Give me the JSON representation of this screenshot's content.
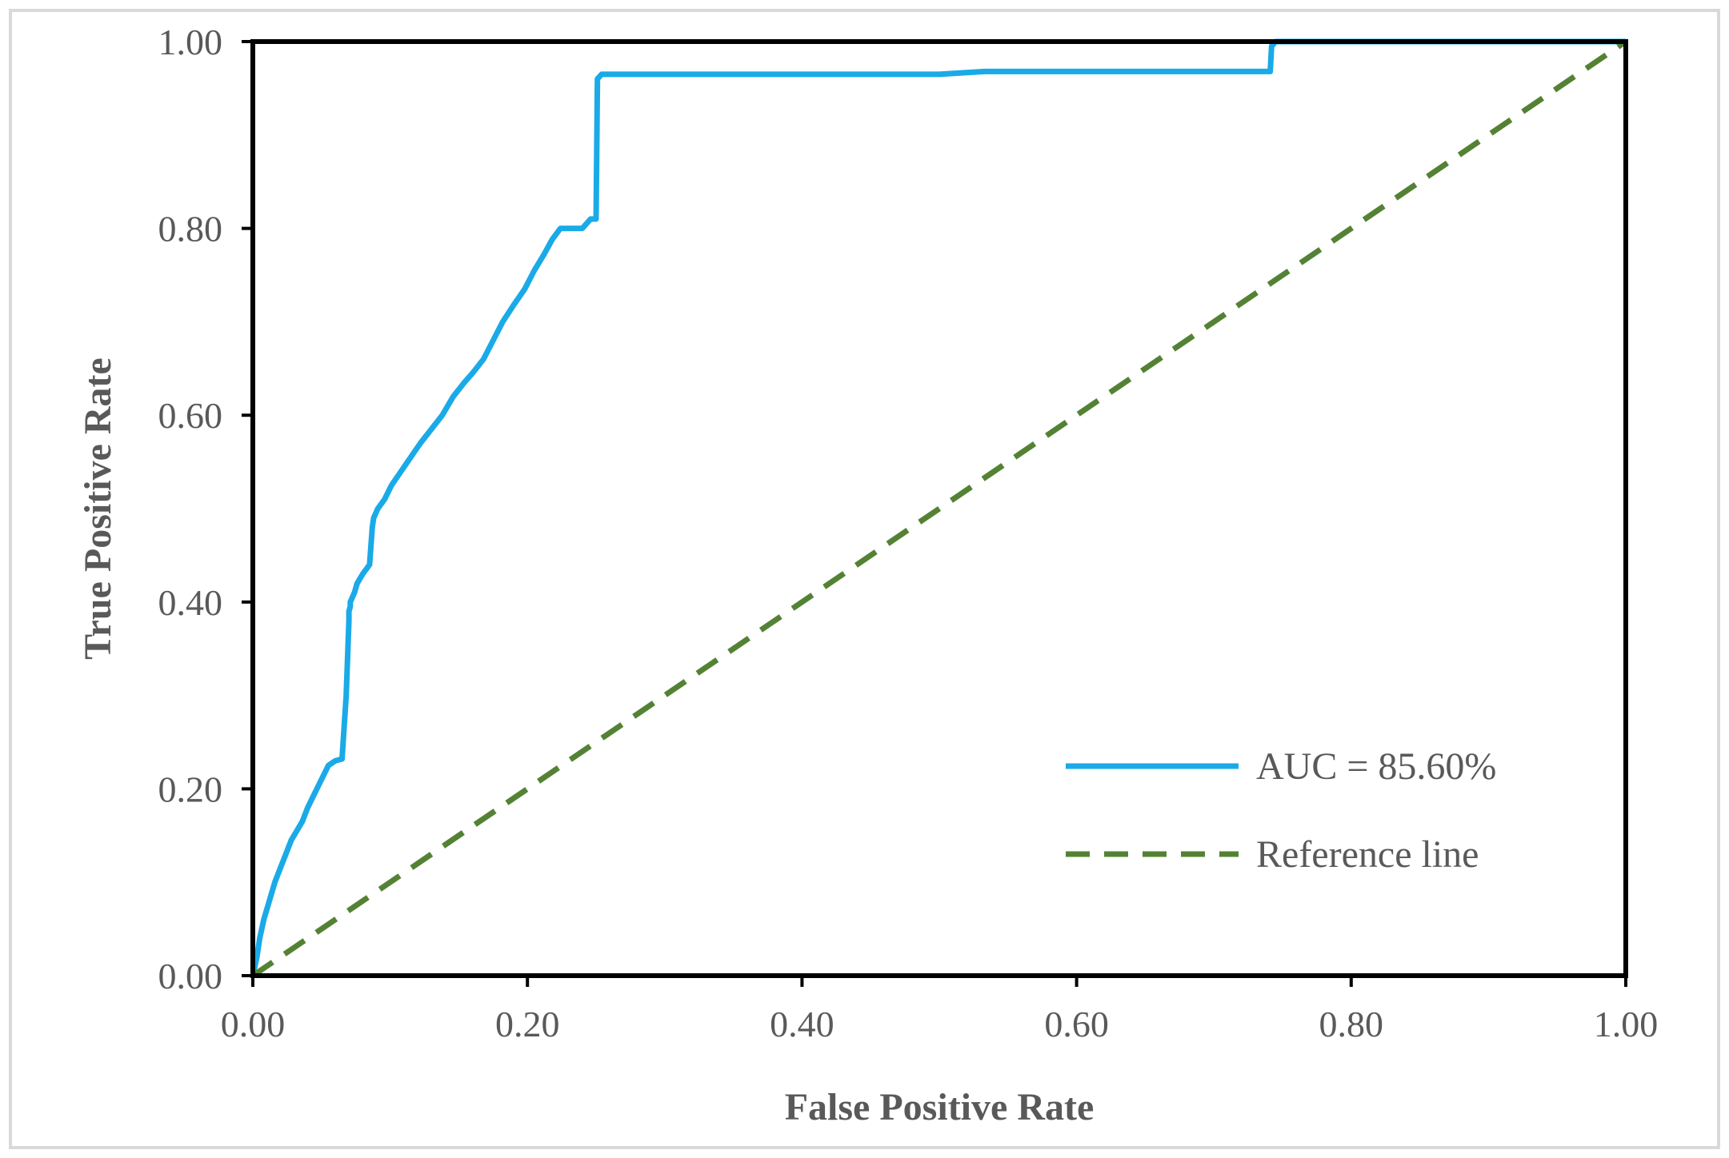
{
  "chart_data": {
    "type": "line",
    "title": "",
    "xlabel": "False Positive Rate",
    "ylabel": "True Positive Rate",
    "xlim": [
      0,
      1
    ],
    "ylim": [
      0,
      1
    ],
    "x_ticks": [
      "0.00",
      "0.20",
      "0.40",
      "0.60",
      "0.80",
      "1.00"
    ],
    "y_ticks": [
      "0.00",
      "0.20",
      "0.40",
      "0.60",
      "0.80",
      "1.00"
    ],
    "grid": false,
    "legend_position": "bottom-right",
    "series": [
      {
        "name": "AUC = 85.60%",
        "color": "#1aaae8",
        "style": "solid",
        "x": [
          0.0,
          0.003,
          0.005,
          0.008,
          0.012,
          0.016,
          0.02,
          0.024,
          0.028,
          0.032,
          0.036,
          0.04,
          0.045,
          0.05,
          0.055,
          0.06,
          0.065,
          0.068,
          0.07,
          0.07,
          0.071,
          0.071,
          0.074,
          0.076,
          0.08,
          0.085,
          0.087,
          0.088,
          0.091,
          0.096,
          0.101,
          0.108,
          0.115,
          0.122,
          0.13,
          0.138,
          0.146,
          0.154,
          0.16,
          0.168,
          0.175,
          0.182,
          0.19,
          0.198,
          0.205,
          0.212,
          0.218,
          0.224,
          0.229,
          0.232,
          0.24,
          0.246,
          0.25,
          0.251,
          0.254,
          0.3,
          0.4,
          0.5,
          0.533,
          0.6,
          0.7,
          0.741,
          0.742,
          0.745,
          0.8,
          0.9,
          1.0
        ],
        "y": [
          0.0,
          0.02,
          0.04,
          0.06,
          0.08,
          0.1,
          0.115,
          0.13,
          0.145,
          0.155,
          0.165,
          0.18,
          0.195,
          0.21,
          0.225,
          0.23,
          0.232,
          0.3,
          0.38,
          0.39,
          0.395,
          0.4,
          0.41,
          0.42,
          0.43,
          0.44,
          0.48,
          0.49,
          0.5,
          0.51,
          0.525,
          0.54,
          0.555,
          0.57,
          0.585,
          0.6,
          0.62,
          0.635,
          0.645,
          0.66,
          0.68,
          0.7,
          0.718,
          0.735,
          0.755,
          0.772,
          0.788,
          0.8,
          0.8,
          0.8,
          0.8,
          0.81,
          0.81,
          0.96,
          0.965,
          0.965,
          0.965,
          0.965,
          0.968,
          0.968,
          0.968,
          0.968,
          0.995,
          1.0,
          1.0,
          1.0,
          1.0
        ]
      },
      {
        "name": "Reference line",
        "color": "#548235",
        "style": "dashed",
        "x": [
          0,
          1
        ],
        "y": [
          0,
          1
        ]
      }
    ]
  }
}
